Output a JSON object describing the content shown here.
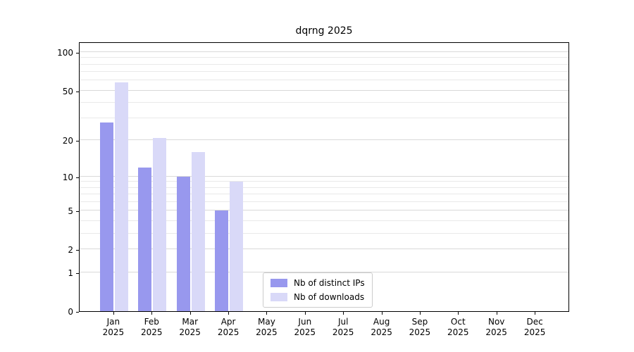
{
  "chart_data": {
    "type": "bar",
    "title": "dqrng 2025",
    "categories": [
      "Jan",
      "Feb",
      "Mar",
      "Apr",
      "May",
      "Jun",
      "Jul",
      "Aug",
      "Sep",
      "Oct",
      "Nov",
      "Dec"
    ],
    "year_label": "2025",
    "series": [
      {
        "name": "Nb of distinct IPs",
        "color": "#9898ee",
        "values": [
          28,
          12,
          10,
          5,
          0,
          0,
          0,
          0,
          0,
          0,
          0,
          0
        ]
      },
      {
        "name": "Nb of downloads",
        "color": "#d9d9f8",
        "values": [
          58,
          21,
          16,
          9,
          0,
          0,
          0,
          0,
          0,
          0,
          0,
          0
        ]
      }
    ],
    "y_ticks": [
      100,
      50,
      20,
      10,
      5,
      2,
      1,
      0
    ],
    "y_minor_ticks": [
      3,
      4,
      6,
      7,
      8,
      9,
      30,
      40,
      60,
      70,
      80,
      90
    ],
    "scale": "log1p",
    "ylim": [
      0,
      100
    ],
    "grid": true,
    "legend_position": "bottom-center"
  }
}
